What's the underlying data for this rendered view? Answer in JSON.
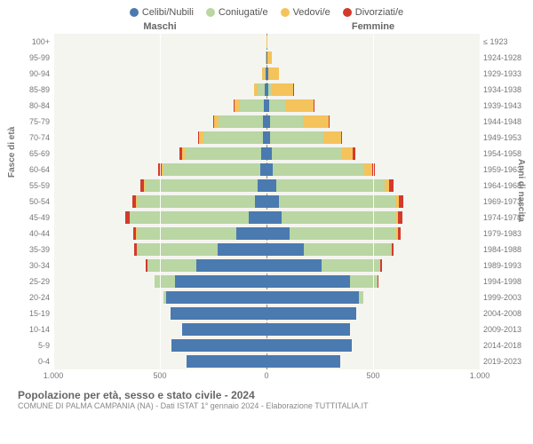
{
  "legend": [
    {
      "label": "Celibi/Nubili",
      "color": "#4a7ab0"
    },
    {
      "label": "Coniugati/e",
      "color": "#b9d6a3"
    },
    {
      "label": "Vedovi/e",
      "color": "#f4c35b"
    },
    {
      "label": "Divorziati/e",
      "color": "#d23a2c"
    }
  ],
  "gender_left": "Maschi",
  "gender_right": "Femmine",
  "y_left_title": "Fasce di età",
  "y_right_title": "Anni di nascita",
  "footer_title": "Popolazione per età, sesso e stato civile - 2024",
  "footer_sub": "COMUNE DI PALMA CAMPANIA (NA) - Dati ISTAT 1° gennaio 2024 - Elaborazione TUTTITALIA.IT",
  "x_ticks": [
    "1.000",
    "500",
    "0",
    "500",
    "1.000"
  ],
  "x_max": 1000,
  "age_groups": [
    "100+",
    "95-99",
    "90-94",
    "85-89",
    "80-84",
    "75-79",
    "70-74",
    "65-69",
    "60-64",
    "55-59",
    "50-54",
    "45-49",
    "40-44",
    "35-39",
    "30-34",
    "25-29",
    "20-24",
    "15-19",
    "10-14",
    "5-9",
    "0-4"
  ],
  "birth_years": [
    "≤ 1923",
    "1924-1928",
    "1929-1933",
    "1934-1938",
    "1939-1943",
    "1944-1948",
    "1949-1953",
    "1954-1958",
    "1959-1963",
    "1964-1968",
    "1969-1973",
    "1974-1978",
    "1979-1983",
    "1984-1988",
    "1989-1993",
    "1994-1998",
    "1999-2003",
    "2004-2008",
    "2009-2013",
    "2014-2018",
    "2019-2023"
  ],
  "pyramid": [
    {
      "m": [
        0,
        0,
        0,
        0
      ],
      "f": [
        2,
        0,
        2,
        0
      ]
    },
    {
      "m": [
        2,
        0,
        4,
        0
      ],
      "f": [
        4,
        0,
        20,
        0
      ]
    },
    {
      "m": [
        6,
        4,
        10,
        0
      ],
      "f": [
        8,
        2,
        50,
        0
      ]
    },
    {
      "m": [
        10,
        30,
        20,
        0
      ],
      "f": [
        10,
        15,
        100,
        2
      ]
    },
    {
      "m": [
        12,
        115,
        25,
        2
      ],
      "f": [
        12,
        75,
        135,
        2
      ]
    },
    {
      "m": [
        15,
        210,
        20,
        4
      ],
      "f": [
        15,
        155,
        120,
        4
      ]
    },
    {
      "m": [
        18,
        280,
        18,
        6
      ],
      "f": [
        18,
        250,
        80,
        8
      ]
    },
    {
      "m": [
        25,
        360,
        12,
        10
      ],
      "f": [
        25,
        330,
        50,
        12
      ]
    },
    {
      "m": [
        30,
        455,
        8,
        14
      ],
      "f": [
        30,
        430,
        35,
        15
      ]
    },
    {
      "m": [
        40,
        530,
        5,
        18
      ],
      "f": [
        45,
        510,
        20,
        20
      ]
    },
    {
      "m": [
        55,
        555,
        3,
        18
      ],
      "f": [
        60,
        545,
        15,
        20
      ]
    },
    {
      "m": [
        85,
        555,
        2,
        20
      ],
      "f": [
        70,
        540,
        8,
        18
      ]
    },
    {
      "m": [
        140,
        470,
        2,
        15
      ],
      "f": [
        110,
        500,
        5,
        15
      ]
    },
    {
      "m": [
        230,
        380,
        0,
        10
      ],
      "f": [
        175,
        410,
        2,
        10
      ]
    },
    {
      "m": [
        330,
        230,
        0,
        6
      ],
      "f": [
        260,
        275,
        0,
        6
      ]
    },
    {
      "m": [
        430,
        95,
        0,
        2
      ],
      "f": [
        390,
        130,
        0,
        2
      ]
    },
    {
      "m": [
        470,
        15,
        0,
        0
      ],
      "f": [
        435,
        20,
        0,
        0
      ]
    },
    {
      "m": [
        450,
        0,
        0,
        0
      ],
      "f": [
        420,
        0,
        0,
        0
      ]
    },
    {
      "m": [
        395,
        0,
        0,
        0
      ],
      "f": [
        390,
        0,
        0,
        0
      ]
    },
    {
      "m": [
        445,
        0,
        0,
        0
      ],
      "f": [
        400,
        0,
        0,
        0
      ]
    },
    {
      "m": [
        375,
        0,
        0,
        0
      ],
      "f": [
        345,
        0,
        0,
        0
      ]
    }
  ],
  "plot_bg": "#f5f5f0"
}
